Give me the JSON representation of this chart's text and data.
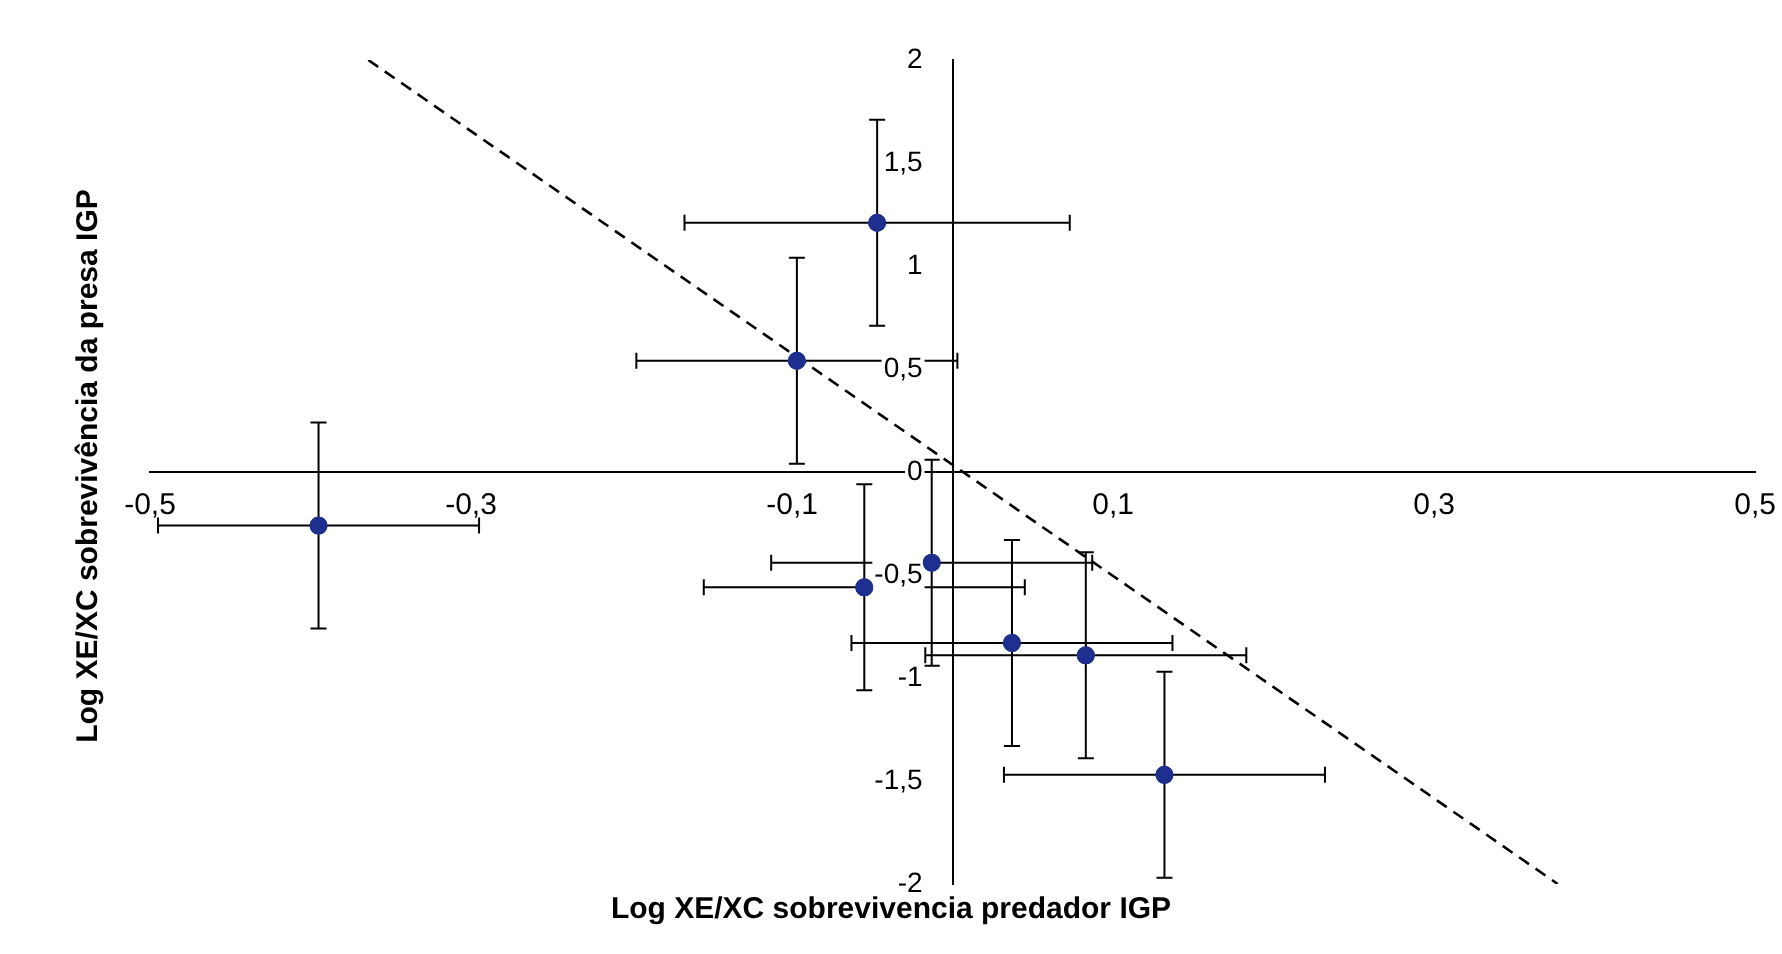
{
  "chart_data": {
    "type": "scatter",
    "xlabel": "Log XE/XC sobrevivencia predador IGP",
    "ylabel": "Log XE/XC sobrevivência da presa IGP",
    "x": [
      -0.047,
      -0.097,
      -0.395,
      -0.055,
      -0.013,
      0.037,
      0.083,
      0.132
    ],
    "series": [
      {
        "color": "#1f2f8f",
        "values": [
          1.21,
          0.54,
          -0.26,
          -0.56,
          -0.44,
          -0.83,
          -0.89,
          -1.47
        ],
        "errors": [
          0.5,
          0.5,
          0.5,
          0.5,
          0.5,
          0.5,
          0.5,
          0.5
        ],
        "xerrors": [
          0.12,
          0.1,
          0.1,
          0.1,
          0.1,
          0.1,
          0.1,
          0.1
        ]
      },
      {
        "type": "line",
        "x": [
          -0.364,
          0.377
        ],
        "values": [
          2,
          -2
        ],
        "color": "#000000",
        "line_style": "dashed",
        "marker": "none"
      }
    ],
    "xlim": [
      -0.5,
      0.5
    ],
    "ylim": [
      -2,
      2
    ],
    "xticks": [
      {
        "value": -0.5,
        "label": "-0,5"
      },
      {
        "value": -0.3,
        "label": "-0,3"
      },
      {
        "value": -0.1,
        "label": "-0,1"
      },
      {
        "value": 0.1,
        "label": "0,1"
      },
      {
        "value": 0.3,
        "label": "0,3"
      },
      {
        "value": 0.5,
        "label": "0,5"
      }
    ],
    "yticks": [
      -2,
      {
        "value": -1.5,
        "label": "-1,5"
      },
      -1,
      {
        "value": -0.5,
        "label": "-0,5"
      },
      0,
      {
        "value": 0.5,
        "label": "0,5"
      },
      1,
      {
        "value": 1.5,
        "label": "1,5"
      },
      2
    ],
    "grid": false,
    "legend": false,
    "marker": "circle"
  }
}
